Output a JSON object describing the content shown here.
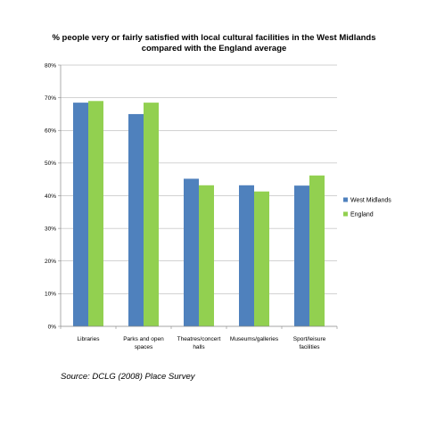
{
  "chart_data": {
    "type": "bar",
    "title_lines": [
      "% people very or fairly satisfied with local cultural facilities in the West Midlands",
      "compared with the England average"
    ],
    "categories": [
      [
        "Libraries"
      ],
      [
        "Parks and open",
        "spaces"
      ],
      [
        "Theatres/concert",
        "halls"
      ],
      [
        "Museums/galleries"
      ],
      [
        "Sport/leisure",
        "facilities"
      ]
    ],
    "series": [
      {
        "name": "West Midlands",
        "color": "#4f81bd",
        "values": [
          68.5,
          65,
          45.2,
          43.2,
          43.1
        ]
      },
      {
        "name": "England",
        "color": "#92d050",
        "values": [
          69,
          68.5,
          43.2,
          41.3,
          46.2
        ]
      }
    ],
    "ylim": [
      0,
      80
    ],
    "yticks": [
      "0%",
      "10%",
      "20%",
      "30%",
      "40%",
      "50%",
      "60%",
      "70%",
      "80%"
    ],
    "grid": true,
    "legend_position": "right",
    "source": "Source: DCLG (2008) Place Survey"
  }
}
